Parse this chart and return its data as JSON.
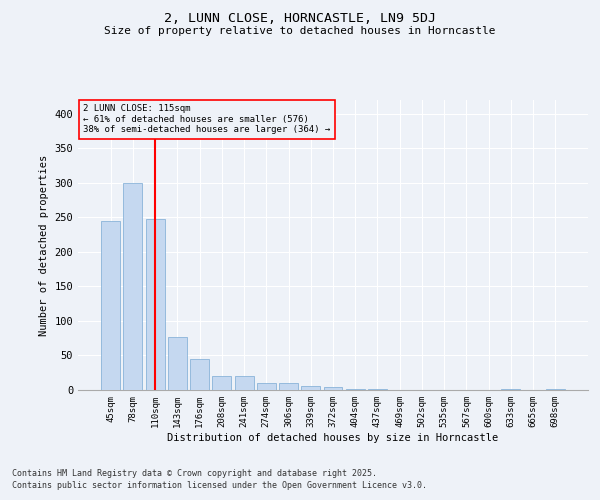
{
  "title": "2, LUNN CLOSE, HORNCASTLE, LN9 5DJ",
  "subtitle": "Size of property relative to detached houses in Horncastle",
  "xlabel": "Distribution of detached houses by size in Horncastle",
  "ylabel": "Number of detached properties",
  "categories": [
    "45sqm",
    "78sqm",
    "110sqm",
    "143sqm",
    "176sqm",
    "208sqm",
    "241sqm",
    "274sqm",
    "306sqm",
    "339sqm",
    "372sqm",
    "404sqm",
    "437sqm",
    "469sqm",
    "502sqm",
    "535sqm",
    "567sqm",
    "600sqm",
    "633sqm",
    "665sqm",
    "698sqm"
  ],
  "values": [
    245,
    300,
    247,
    77,
    45,
    20,
    20,
    10,
    10,
    6,
    5,
    1,
    1,
    0,
    0,
    0,
    0,
    0,
    1,
    0,
    1
  ],
  "bar_color": "#c5d8f0",
  "bar_edge_color": "#7aaad4",
  "redline_index": 2,
  "redline_label": "2 LUNN CLOSE: 115sqm",
  "annotation_line1": "← 61% of detached houses are smaller (576)",
  "annotation_line2": "38% of semi-detached houses are larger (364) →",
  "ylim": [
    0,
    420
  ],
  "yticks": [
    0,
    50,
    100,
    150,
    200,
    250,
    300,
    350,
    400
  ],
  "background_color": "#eef2f8",
  "grid_color": "#ffffff",
  "footnote1": "Contains HM Land Registry data © Crown copyright and database right 2025.",
  "footnote2": "Contains public sector information licensed under the Open Government Licence v3.0."
}
